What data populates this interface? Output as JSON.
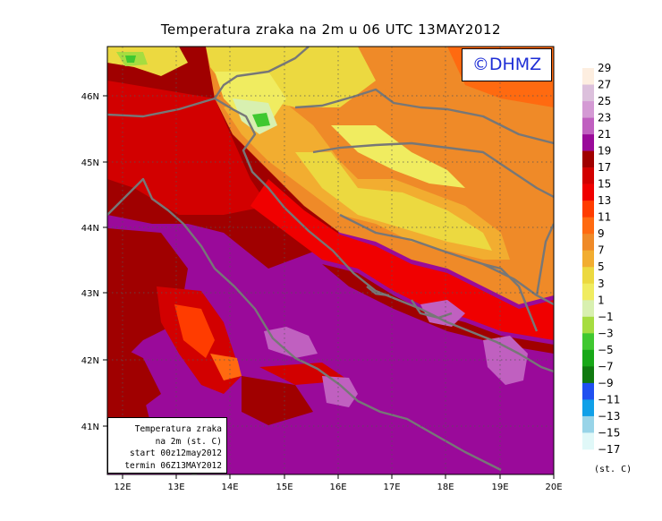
{
  "title": "Temperatura zraka na 2m u 06 UTC 13MAY2012",
  "copyright": "©DHMZ",
  "info_box": {
    "line1": "Temperatura zraka",
    "line2": "na 2m (st. C)",
    "line3": "start 00z12may2012",
    "line4": "termin 06Z13MAY2012"
  },
  "lat_labels": [
    "46N",
    "45N",
    "44N",
    "43N",
    "42N",
    "41N"
  ],
  "lon_labels": [
    "12E",
    "13E",
    "14E",
    "15E",
    "16E",
    "17E",
    "18E",
    "19E",
    "20E"
  ],
  "legend": {
    "unit": "(st. C)",
    "levels": [
      "29",
      "27",
      "25",
      "23",
      "21",
      "19",
      "17",
      "15",
      "13",
      "11",
      "9",
      "7",
      "5",
      "3",
      "1",
      "−1",
      "−3",
      "−5",
      "−7",
      "−9",
      "−11",
      "−13",
      "−15",
      "−17"
    ],
    "colors": [
      "#fdeee0",
      "#dcc0dc",
      "#d49ad4",
      "#c060c0",
      "#9a0a9a",
      "#a00000",
      "#d20000",
      "#f00000",
      "#ff3c00",
      "#ff6a10",
      "#ef8a28",
      "#f2ad30",
      "#ecd940",
      "#f0ec60",
      "#d8f0b0",
      "#a6dd40",
      "#40c830",
      "#18a818",
      "#107a10",
      "#2050f0",
      "#10a0e8",
      "#98d4e8",
      "#e0f8f8"
    ]
  }
}
